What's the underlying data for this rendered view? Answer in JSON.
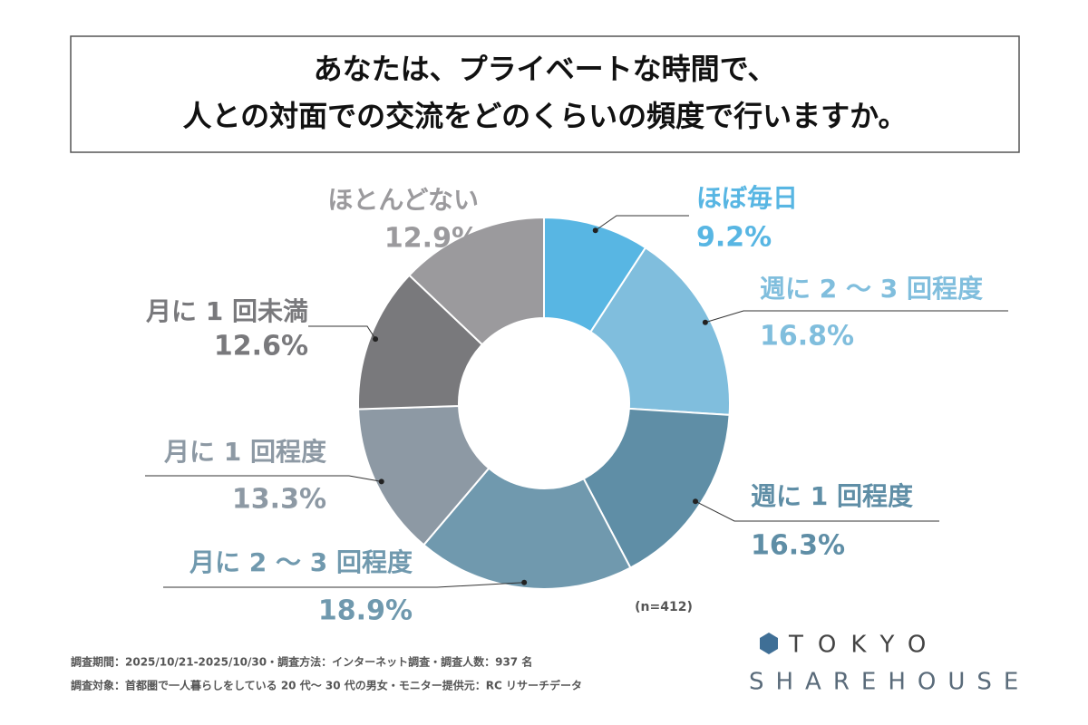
{
  "chart_data": {
    "type": "donut",
    "title": [
      "あなたは、プライベートな時間で、",
      "人との対面での交流をどのくらいの頻度で行いますか。"
    ],
    "categories": [
      "ほぼ毎日",
      "週に 2 ～ 3 回程度",
      "週に 1 回程度",
      "月に 2 ～ 3 回程度",
      "月に 1 回程度",
      "月に 1 回未満",
      "ほとんどない"
    ],
    "values": [
      9.2,
      16.8,
      16.3,
      18.9,
      13.3,
      12.6,
      12.9
    ],
    "value_labels": [
      "9.2%",
      "16.8%",
      "16.3%",
      "18.9%",
      "13.3%",
      "12.6%",
      "12.9%"
    ],
    "colors": [
      "#58b6e3",
      "#80bedd",
      "#5f8ea6",
      "#7099ae",
      "#8d99a4",
      "#79797c",
      "#9b9a9d"
    ],
    "note": "(n=412)",
    "footnotes": [
      "調査期間：2025/10/21-2025/10/30・調査方法：インターネット調査・調査人数：937 名",
      "調査対象：首都圏で一人暮らしをしている 20 代～ 30 代の男女・モニター提供元：RC リサーチデータ"
    ],
    "logo": [
      "TOKYO",
      "SHAREHOUSE"
    ]
  }
}
